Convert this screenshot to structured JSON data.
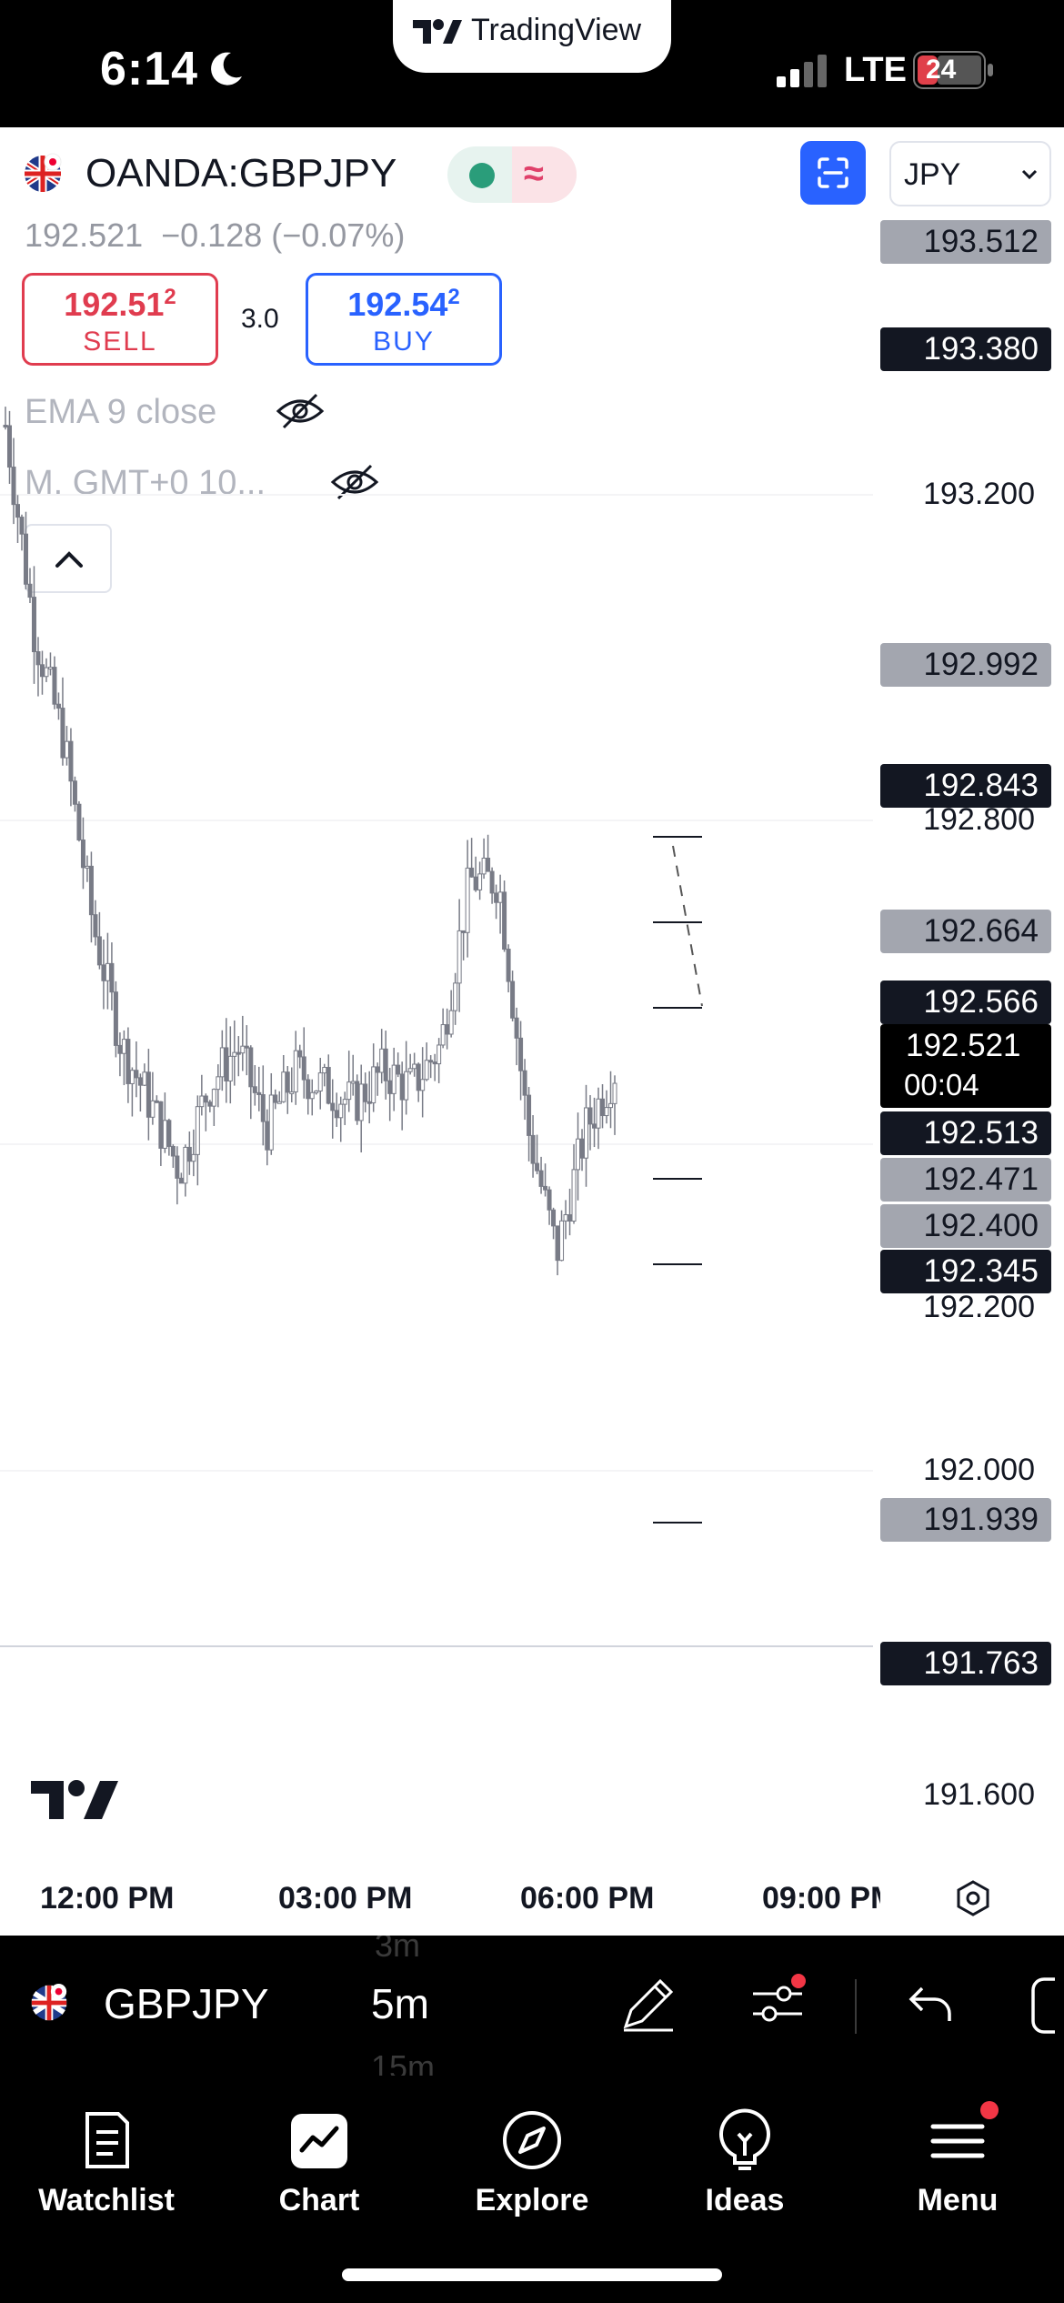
{
  "status_bar": {
    "time": "6:14",
    "network": "LTE",
    "battery_label": "24",
    "app_badge": "TradingView"
  },
  "header": {
    "symbol": "OANDA:GBPJPY",
    "currency": "JPY",
    "price_summary": "192.521  −0.128 (−0.07%)",
    "sell": {
      "price_main": "192.51",
      "price_sup": "2",
      "label": "SELL"
    },
    "buy": {
      "price_main": "192.54",
      "price_sup": "2",
      "label": "BUY"
    },
    "spread": "3.0",
    "indicators": [
      "EMA 9 close",
      "M. GMT+0 10..."
    ]
  },
  "price_axis": {
    "ticks": [
      "193.200",
      "192.800",
      "192.200",
      "192.000",
      "191.600"
    ],
    "labels": [
      {
        "value": "193.512",
        "style": "grey"
      },
      {
        "value": "193.380",
        "style": "dark"
      },
      {
        "value": "192.992",
        "style": "grey"
      },
      {
        "value": "192.843",
        "style": "dark"
      },
      {
        "value": "192.664",
        "style": "grey"
      },
      {
        "value": "192.566",
        "style": "dark"
      },
      {
        "value": "192.513",
        "style": "dark"
      },
      {
        "value": "192.471",
        "style": "grey"
      },
      {
        "value": "192.400",
        "style": "grey"
      },
      {
        "value": "192.345",
        "style": "dark"
      },
      {
        "value": "191.939",
        "style": "grey"
      },
      {
        "value": "191.763",
        "style": "dark"
      }
    ],
    "current_price": "192.521",
    "countdown": "00:04"
  },
  "time_axis": [
    "12:00 PM",
    "03:00 PM",
    "06:00 PM",
    "09:00 PM"
  ],
  "toolbar": {
    "symbol": "GBPJPY",
    "interval": "5m",
    "interval_prev": "3m",
    "interval_next": "15m"
  },
  "tabs": [
    {
      "label": "Watchlist",
      "icon": "watchlist-icon"
    },
    {
      "label": "Chart",
      "icon": "chart-icon"
    },
    {
      "label": "Explore",
      "icon": "compass-icon"
    },
    {
      "label": "Ideas",
      "icon": "lightbulb-icon"
    },
    {
      "label": "Menu",
      "icon": "menu-icon"
    }
  ],
  "chart_data": {
    "type": "candlestick",
    "symbol": "OANDA:GBPJPY",
    "interval": "5m",
    "close_approx": [
      193.3,
      193.05,
      192.92,
      192.7,
      192.55,
      192.48,
      192.4,
      192.5,
      192.55,
      192.45,
      192.52,
      192.5,
      192.48,
      192.52,
      192.5,
      192.55,
      192.75,
      192.75,
      192.45,
      192.3,
      192.45,
      192.52
    ],
    "ylim": [
      191.55,
      193.55
    ],
    "current_price": 192.521
  }
}
